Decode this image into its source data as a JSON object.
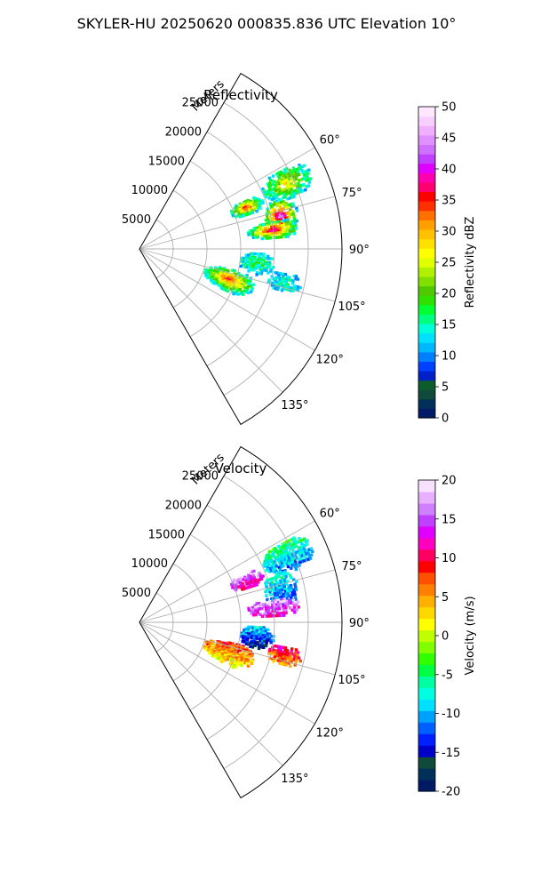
{
  "figure": {
    "title": "SKYLER-HU  20250620  000835.836 UTC Elevation 10°"
  },
  "chart_data": [
    {
      "type": "heatmap",
      "projection": "polar-sector",
      "title": "Reflectivity",
      "azimuth_range_deg": [
        30,
        150
      ],
      "range_max_m": 30000,
      "range_unit_label": "Meters",
      "range_ticks": [
        "5000",
        "10000",
        "15000",
        "20000",
        "25000"
      ],
      "azimuth_ticks": [
        "60°",
        "75°",
        "90°",
        "105°",
        "120°",
        "135°"
      ],
      "grid": true,
      "colorbar": {
        "label": "Reflectivity dBZ",
        "min": 0,
        "max": 50,
        "ticks": [
          "0",
          "5",
          "10",
          "15",
          "20",
          "25",
          "30",
          "35",
          "40",
          "45",
          "50"
        ]
      },
      "echo_cells": [
        {
          "az": 69,
          "rng": 17000,
          "peak": 37
        },
        {
          "az": 66,
          "rng": 24000,
          "peak": 28
        },
        {
          "az": 77,
          "rng": 21500,
          "peak": 44
        },
        {
          "az": 82,
          "rng": 20000,
          "peak": 41
        },
        {
          "az": 97,
          "rng": 17500,
          "peak": 18
        },
        {
          "az": 109,
          "rng": 14000,
          "peak": 36
        },
        {
          "az": 103,
          "rng": 22000,
          "peak": 15
        }
      ]
    },
    {
      "type": "heatmap",
      "projection": "polar-sector",
      "title": "Velocity",
      "azimuth_range_deg": [
        30,
        150
      ],
      "range_max_m": 30000,
      "range_unit_label": "Meters",
      "range_ticks": [
        "5000",
        "10000",
        "15000",
        "20000",
        "25000"
      ],
      "azimuth_ticks": [
        "60°",
        "75°",
        "90°",
        "105°",
        "120°",
        "135°"
      ],
      "grid": true,
      "colorbar": {
        "label": "Velocity (m/s)",
        "min": -20,
        "max": 20,
        "ticks": [
          "-20",
          "-15",
          "-10",
          "-5",
          "0",
          "5",
          "10",
          "15",
          "20"
        ]
      },
      "echo_cells": [
        {
          "az": 69,
          "rng": 17000,
          "peak": 14
        },
        {
          "az": 66,
          "rng": 24000,
          "peak": -8
        },
        {
          "az": 77,
          "rng": 21500,
          "peak": -10
        },
        {
          "az": 84,
          "rng": 20000,
          "peak": 15
        },
        {
          "az": 97,
          "rng": 17500,
          "peak": -12
        },
        {
          "az": 109,
          "rng": 14000,
          "peak": 5
        },
        {
          "az": 103,
          "rng": 22000,
          "peak": 8
        }
      ]
    }
  ]
}
